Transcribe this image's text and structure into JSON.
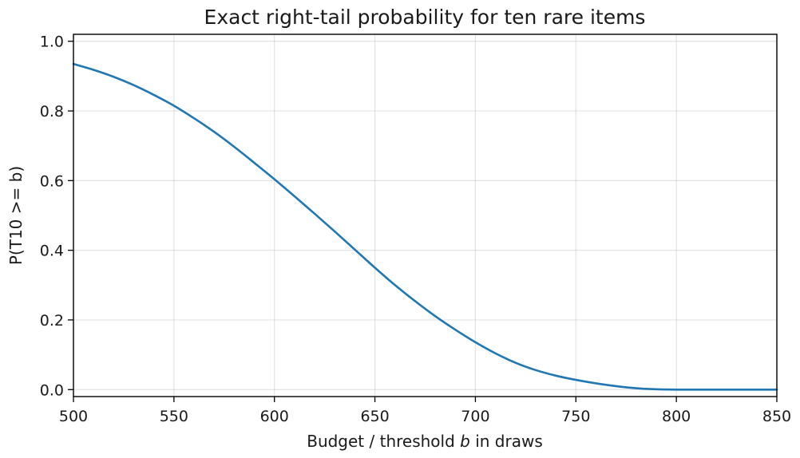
{
  "chart_data": {
    "type": "line",
    "title": "Exact right-tail probability for ten rare items",
    "xlabel_prefix": "Budget / threshold ",
    "xlabel_var": "b",
    "xlabel_suffix": " in draws",
    "ylabel": "P(T10 >= b)",
    "xlim": [
      500,
      850
    ],
    "ylim": [
      -0.02,
      1.02
    ],
    "xticks": [
      500,
      550,
      600,
      650,
      700,
      750,
      800,
      850
    ],
    "xtick_labels": [
      "500",
      "550",
      "600",
      "650",
      "700",
      "750",
      "800",
      "850"
    ],
    "yticks": [
      0.0,
      0.2,
      0.4,
      0.6,
      0.8,
      1.0
    ],
    "ytick_labels": [
      "0.0",
      "0.2",
      "0.4",
      "0.6",
      "0.8",
      "1.0"
    ],
    "grid": true,
    "series": [
      {
        "color": "#1f77b4",
        "x": [
          500,
          510,
          520,
          530,
          540,
          550,
          560,
          570,
          580,
          590,
          600,
          610,
          620,
          630,
          640,
          650,
          660,
          670,
          680,
          690,
          700,
          710,
          720,
          730,
          740,
          750,
          760,
          770,
          780,
          790,
          800,
          810,
          820,
          830,
          840,
          850
        ],
        "y": [
          0.935,
          0.918,
          0.898,
          0.874,
          0.846,
          0.815,
          0.779,
          0.74,
          0.697,
          0.651,
          0.604,
          0.555,
          0.505,
          0.454,
          0.402,
          0.35,
          0.3,
          0.254,
          0.211,
          0.172,
          0.136,
          0.104,
          0.077,
          0.056,
          0.04,
          0.028,
          0.018,
          0.01,
          0.004,
          0.001,
          0.0,
          0.0,
          0.0,
          0.0,
          0.0,
          0.0
        ]
      }
    ]
  }
}
